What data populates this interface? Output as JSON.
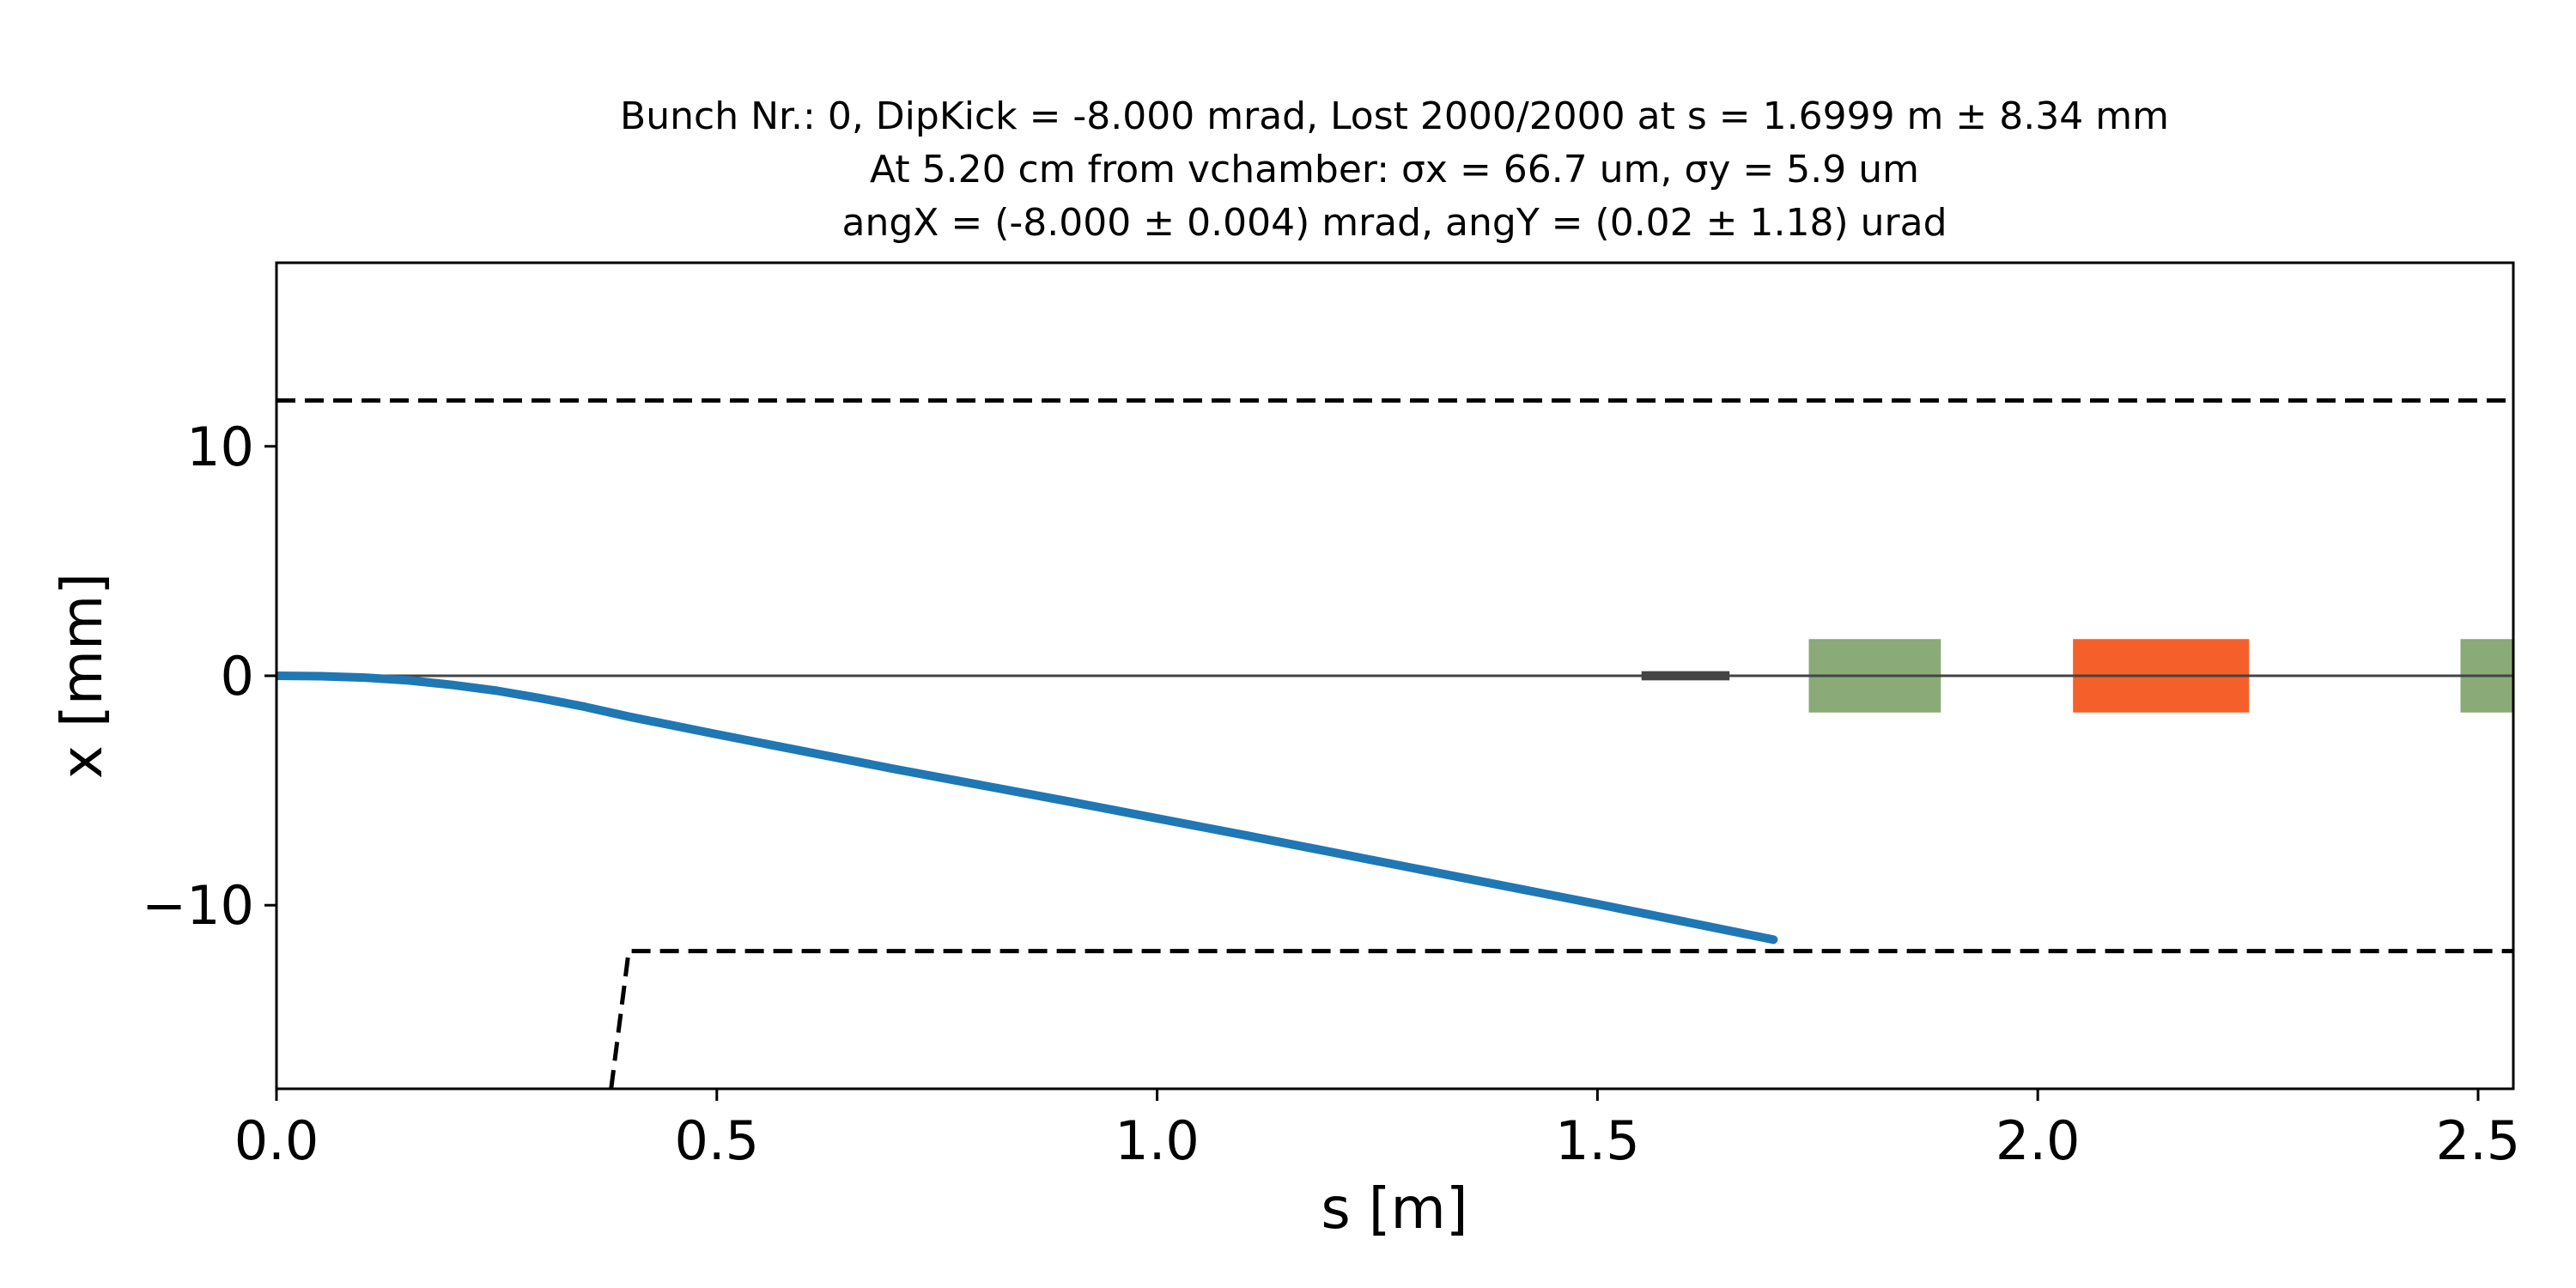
{
  "chart_data": {
    "type": "line",
    "title_lines": [
      "Bunch Nr.: 0, DipKick = -8.000 mrad, Lost 2000/2000 at s = 1.6999 m ± 8.34 mm",
      "At 5.20 cm from vchamber: σx = 66.7 um, σy = 5.9 um",
      "angX = (-8.000 ± 0.004) mrad, angY = (0.02 ± 1.18) urad"
    ],
    "xlabel": "s [m]",
    "ylabel": "x [mm]",
    "xlim": [
      0.0,
      2.54
    ],
    "ylim": [
      -18,
      18
    ],
    "x_ticks": [
      0.0,
      0.5,
      1.0,
      1.5,
      2.0,
      2.5
    ],
    "x_tick_labels": [
      "0.0",
      "0.5",
      "1.0",
      "1.5",
      "2.0",
      "2.5"
    ],
    "y_ticks": [
      10,
      0,
      -10
    ],
    "y_tick_labels": [
      "10",
      "0",
      "−10"
    ],
    "grid": false,
    "series": [
      {
        "role": "beam-trajectory",
        "color": "#1f77b4",
        "points": [
          [
            0.0,
            0.0
          ],
          [
            0.05,
            -0.02
          ],
          [
            0.1,
            -0.08
          ],
          [
            0.15,
            -0.2
          ],
          [
            0.2,
            -0.4
          ],
          [
            0.25,
            -0.65
          ],
          [
            0.3,
            -0.98
          ],
          [
            0.35,
            -1.35
          ],
          [
            0.4,
            -1.78
          ],
          [
            0.5,
            -2.55
          ],
          [
            0.7,
            -4.05
          ],
          [
            0.9,
            -5.48
          ],
          [
            1.1,
            -6.95
          ],
          [
            1.3,
            -8.45
          ],
          [
            1.5,
            -9.95
          ],
          [
            1.6999,
            -11.5
          ]
        ]
      },
      {
        "role": "upper-vacuum-chamber",
        "color": "#000000",
        "style": "dashed",
        "points": [
          [
            0.0,
            12.0
          ],
          [
            2.54,
            12.0
          ]
        ]
      },
      {
        "role": "lower-vacuum-chamber",
        "color": "#000000",
        "style": "dashed",
        "points": [
          [
            0.38,
            -18.0
          ],
          [
            0.4,
            -12.0
          ],
          [
            2.54,
            -12.0
          ]
        ]
      },
      {
        "role": "reference-axis",
        "color": "#444444",
        "style": "solid",
        "points": [
          [
            0.0,
            0.0
          ],
          [
            2.54,
            0.0
          ]
        ]
      }
    ],
    "elements": [
      {
        "kind": "marker",
        "color": "#444444",
        "s_start": 1.55,
        "s_end": 1.65,
        "half_height": 0.2
      },
      {
        "kind": "quadrupole",
        "color": "#8aaa78",
        "s_start": 1.74,
        "s_end": 1.89,
        "half_height": 1.6
      },
      {
        "kind": "dipole",
        "color": "#f5602a",
        "s_start": 2.04,
        "s_end": 2.24,
        "half_height": 1.6
      },
      {
        "kind": "quadrupole",
        "color": "#8aaa78",
        "s_start": 2.48,
        "s_end": 2.54,
        "half_height": 1.6
      }
    ]
  }
}
